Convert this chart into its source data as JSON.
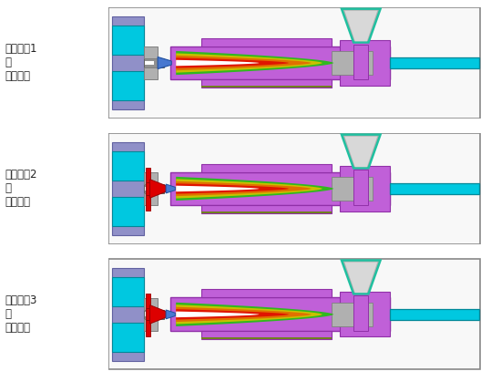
{
  "labels": [
    "注塑过程1\n：\n塑化熔融",
    "注塑过程2\n：\n注射进料",
    "注塑过程3\n：\n保压冷却"
  ],
  "bg_color": "#ffffff",
  "colors": {
    "purple": "#c060d8",
    "purple_dark": "#9030a8",
    "cyan_bright": "#00c8e0",
    "cyan_dark": "#009090",
    "blue_left": "#8080c0",
    "gray_med": "#a0a0a0",
    "gray_light": "#c8c8c8",
    "gray_dark": "#707070",
    "red": "#dd0000",
    "white": "#ffffff",
    "hopper_teal": "#20c0a0",
    "hopper_gray": "#a8a8a8",
    "hopper_inner": "#d8d8d8",
    "olive": "#607010",
    "green_flame": "#30b820"
  }
}
